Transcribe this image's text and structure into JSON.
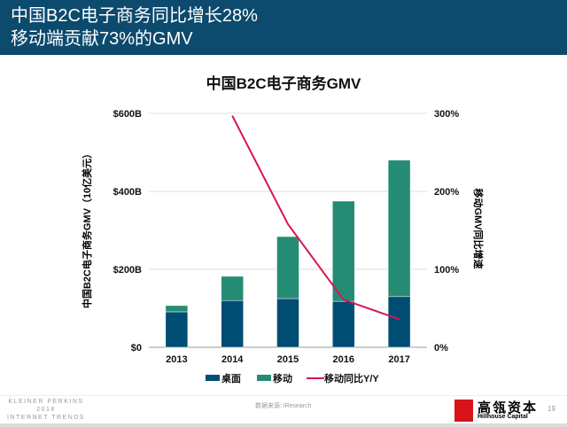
{
  "header": {
    "title_line1": "中国B2C电子商务同比增长28%",
    "title_line2": "移动端贡献73%的GMV"
  },
  "chart_data": {
    "type": "bar",
    "title": "中国B2C电子商务GMV",
    "ylabel": "中国B2C电子商务GMV（10亿美元）",
    "y2label": "移动GMV同比增速",
    "categories": [
      "2013",
      "2014",
      "2015",
      "2016",
      "2017"
    ],
    "ylim": [
      0,
      600
    ],
    "yticks": [
      "$0",
      "$200B",
      "$400B",
      "$600B"
    ],
    "y2lim": [
      0,
      300
    ],
    "y2ticks": [
      "0%",
      "100%",
      "200%",
      "300%"
    ],
    "stacked": true,
    "series": [
      {
        "name": "桌面",
        "type": "bar",
        "color": "#004d74",
        "values": [
          91,
          120,
          125,
          118,
          130
        ]
      },
      {
        "name": "移动",
        "type": "bar",
        "color": "#258c74",
        "values": [
          16,
          62,
          159,
          257,
          350
        ]
      },
      {
        "name": "移动同比Y/Y",
        "type": "line",
        "axis": "right",
        "color": "#d6165a",
        "values": [
          null,
          297,
          158,
          61,
          36
        ]
      }
    ],
    "grid": true,
    "legend": "bottom"
  },
  "footer": {
    "kp_line1": "KLEINER PERKINS",
    "kp_line2": "2018",
    "kp_line3": "INTERNET TRENDS",
    "source": "数据来源: iResearch",
    "logo_cn": "高瓴资本",
    "logo_en": "Hillhouse Capital",
    "logo_mark": "HILLHOUSE",
    "page": "19"
  }
}
